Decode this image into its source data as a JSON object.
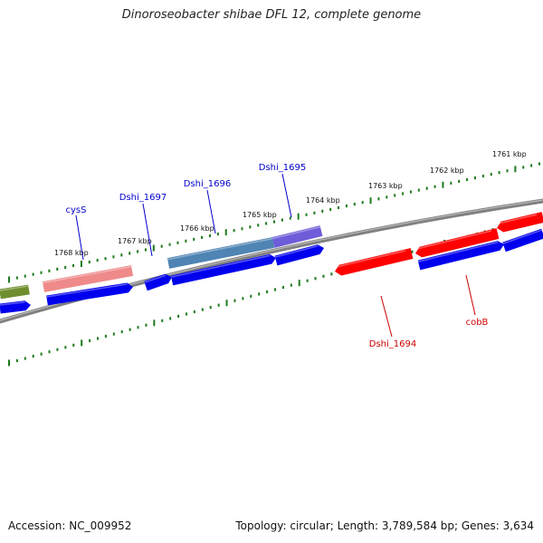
{
  "title": "Dinoroseobacter shibae DFL 12, complete genome",
  "footer": {
    "accession": "Accession: NC_009952",
    "stats": "Topology: circular; Length: 3,789,584 bp; Genes: 3,634"
  },
  "colors": {
    "backbone": "#808080",
    "tick": "#1e7a1e",
    "cds": "#0000ee",
    "gene_red": "#ff0000",
    "gene_pink": "#ef8a8a",
    "gene_steelblue": "#4f84b4",
    "gene_purple": "#6e5dd8",
    "gene_olive": "#6f8f2f",
    "label_blue": "#0000cc",
    "label_red": "#cc0000"
  },
  "scale_labels": [
    "1761 kbp",
    "1762 kbp",
    "1763 kbp",
    "1764 kbp",
    "1765 kbp",
    "1766 kbp",
    "1767 kbp",
    "1768 kbp"
  ],
  "gene_labels": [
    {
      "name": "cysS",
      "color": "blue"
    },
    {
      "name": "Dshi_1697",
      "color": "blue"
    },
    {
      "name": "Dshi_1696",
      "color": "blue"
    },
    {
      "name": "Dshi_1695",
      "color": "blue"
    },
    {
      "name": "Dshi_1694",
      "color": "red"
    },
    {
      "name": "cobB",
      "color": "red"
    }
  ]
}
